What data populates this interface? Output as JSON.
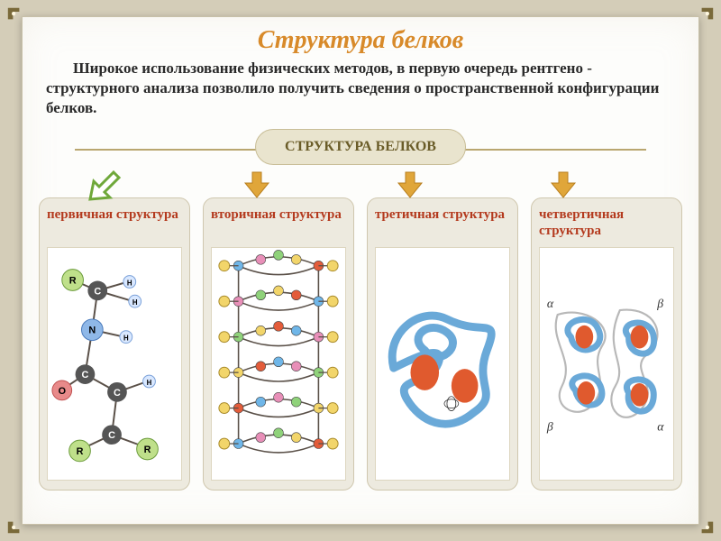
{
  "title": "Структура белков",
  "intro": "Широкое использование физических методов, в первую очередь рентгено - структурного анализа позволило получить сведения о пространственной конфигурации белков.",
  "hub": {
    "label": "СТРУКТУРА  БЕЛКОВ"
  },
  "arrows": {
    "first_stroke": "#6fa83a",
    "first_fill": "#ffffff",
    "rest_fill": "#e0a63a",
    "rest_stroke": "#b87f1f"
  },
  "cards": [
    {
      "title": "первичная структура",
      "kind": "primary",
      "labels": {
        "R": "R",
        "C": "C",
        "N": "N",
        "O": "O",
        "H": "H"
      }
    },
    {
      "title": "вторичная структура",
      "kind": "secondary"
    },
    {
      "title": "третичная структура",
      "kind": "tertiary"
    },
    {
      "title": "четвертичная структура",
      "kind": "quaternary",
      "labels": {
        "alpha": "α",
        "beta": "β"
      }
    }
  ],
  "colors": {
    "page_bg": "#fdfdfb",
    "outer_bg": "#d4cdb8",
    "card_bg": "#edeadf",
    "hub_bg": "#e9e4ce",
    "title": "#d88a2a",
    "card_title": "#b43a1e",
    "bead_blue": "#6fb6e8",
    "bead_pink": "#e88fb8",
    "bead_green": "#8fd27a",
    "bead_yellow": "#f2d56a",
    "bead_red": "#e35c3a",
    "backbone": "#5a5048",
    "tertiary_line": "#6aa9d8",
    "blob": "#e05a2e"
  },
  "typography": {
    "title_pt": 28,
    "intro_pt": 17,
    "hub_pt": 16,
    "card_title_pt": 15
  }
}
